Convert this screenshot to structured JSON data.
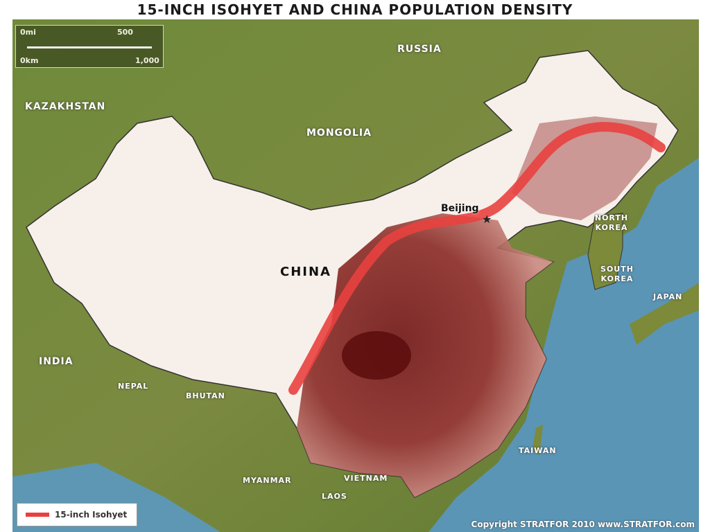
{
  "title": "15-INCH ISOHYET AND CHINA POPULATION DENSITY",
  "scale": {
    "mi_start": "0mi",
    "mi_mid": "500",
    "km_start": "0km",
    "km_end": "1,000"
  },
  "labels": {
    "russia": "RUSSIA",
    "kazakhstan": "KAZAKHSTAN",
    "mongolia": "MONGOLIA",
    "china": "CHINA",
    "beijing": "Beijing",
    "north_korea": "NORTH KOREA",
    "south_korea": "SOUTH KOREA",
    "japan": "JAPAN",
    "india": "INDIA",
    "nepal": "NEPAL",
    "bhutan": "BHUTAN",
    "myanmar": "MYANMAR",
    "vietnam": "VIETNAM",
    "laos": "LAOS",
    "taiwan": "TAIWAN"
  },
  "legend": {
    "label": "15-inch Isohyet",
    "color": "#e8413f"
  },
  "copyright": "Copyright STRATFOR 2010   www.STRATFOR.com",
  "colors": {
    "land": "#7a8a3c",
    "sea": "#5a95b5",
    "china": "#f7efe9",
    "density_high": "#7a1a1a"
  }
}
